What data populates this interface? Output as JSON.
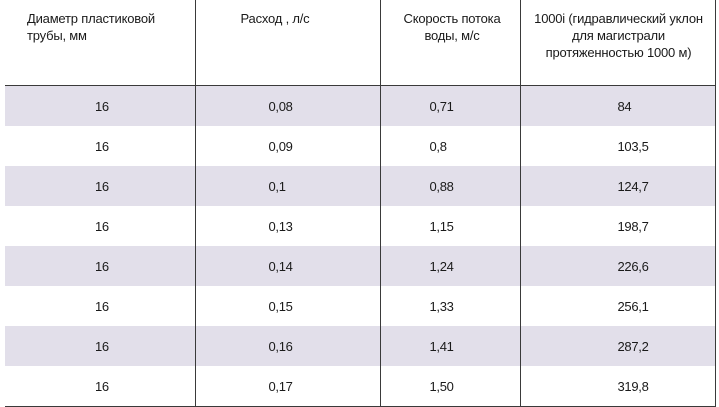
{
  "table": {
    "headers": [
      "Диаметр пластиковой трубы, мм",
      "Расход , л/с",
      "Скорость потока воды, м/с",
      "1000i  (гидравлический уклон для магистрали протяженностью 1000 м)"
    ],
    "rows": [
      [
        "16",
        "0,08",
        "0,71",
        "84"
      ],
      [
        "16",
        "0,09",
        "0,8",
        "103,5"
      ],
      [
        "16",
        "0,1",
        "0,88",
        "124,7"
      ],
      [
        "16",
        "0,13",
        "1,15",
        "198,7"
      ],
      [
        "16",
        "0,14",
        "1,24",
        "226,6"
      ],
      [
        "16",
        "0,15",
        "1,33",
        "256,1"
      ],
      [
        "16",
        "0,16",
        "1,41",
        "287,2"
      ],
      [
        "16",
        "0,17",
        "1,50",
        "319,8"
      ]
    ],
    "shaded_row_color": "#e2dfea",
    "border_color": "#3a3a3a"
  }
}
